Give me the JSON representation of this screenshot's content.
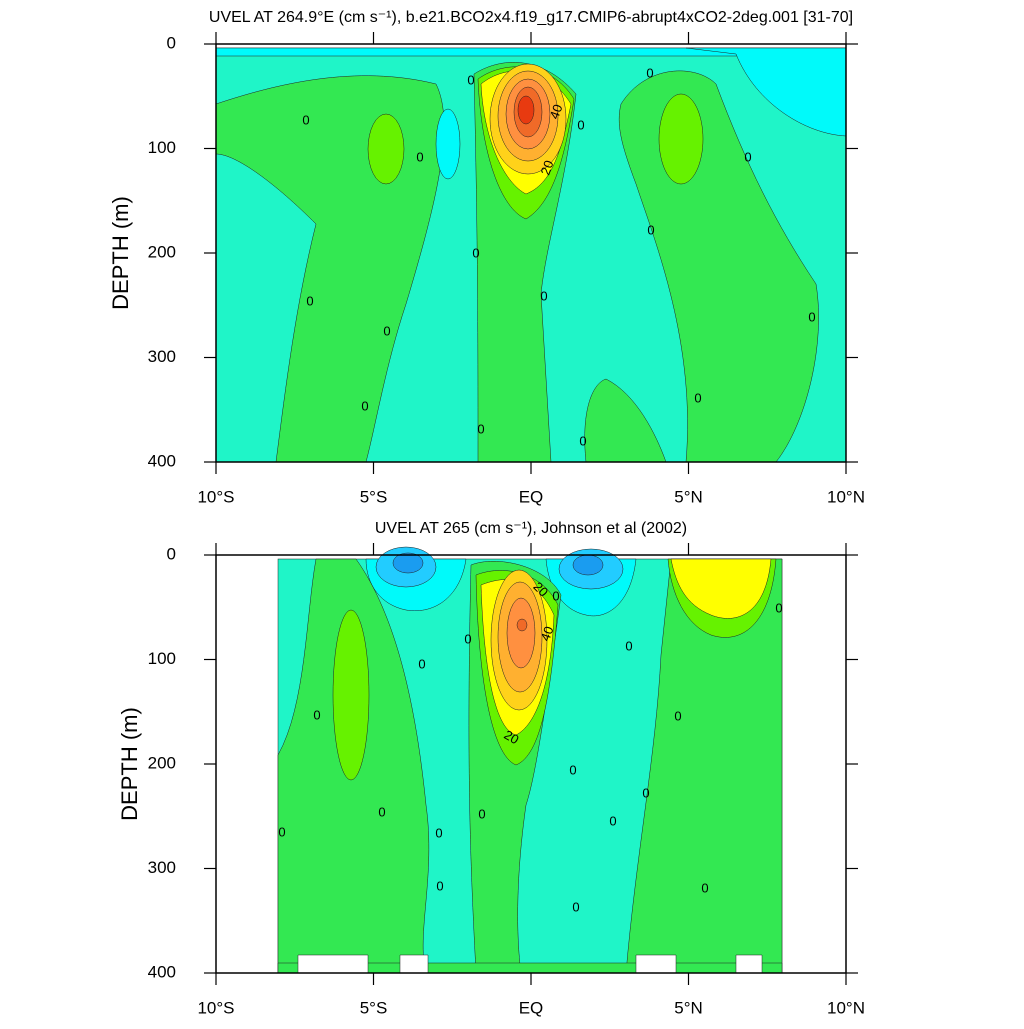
{
  "chart_data": [
    {
      "type": "contour",
      "title": "UVEL AT 264.9°E (cm s⁻¹), b.e21.BCO2x4.f19_g17.CMIP6-abrupt4xCO2-2deg.001 [31-70]",
      "ylabel": "DEPTH (m)",
      "xlim": [
        -10,
        10
      ],
      "xticks": [
        {
          "value": -10,
          "label": "10°S"
        },
        {
          "value": -5,
          "label": "5°S"
        },
        {
          "value": 0,
          "label": "EQ"
        },
        {
          "value": 5,
          "label": "5°N"
        },
        {
          "value": 10,
          "label": "10°N"
        }
      ],
      "ylim": [
        400,
        0
      ],
      "yticks": [
        0,
        100,
        200,
        300,
        400
      ],
      "contour_labels": [
        0,
        0,
        0,
        0,
        0,
        0,
        0,
        0,
        0,
        0,
        0,
        0,
        0,
        0,
        0,
        0,
        40,
        20
      ]
    },
    {
      "type": "contour",
      "title": "UVEL AT 265 (cm s⁻¹), Johnson et al (2002)",
      "ylabel": "DEPTH (m)",
      "xlim": [
        -10,
        10
      ],
      "xticks": [
        {
          "value": -10,
          "label": "10°S"
        },
        {
          "value": -5,
          "label": "5°S"
        },
        {
          "value": 0,
          "label": "EQ"
        },
        {
          "value": 5,
          "label": "5°N"
        },
        {
          "value": 10,
          "label": "10°N"
        }
      ],
      "ylim": [
        400,
        0
      ],
      "yticks": [
        0,
        100,
        200,
        300,
        400
      ],
      "contour_labels": [
        0,
        0,
        0,
        0,
        0,
        0,
        0,
        0,
        0,
        0,
        0,
        0,
        0,
        0,
        0,
        0,
        0,
        20,
        20,
        40
      ]
    }
  ]
}
